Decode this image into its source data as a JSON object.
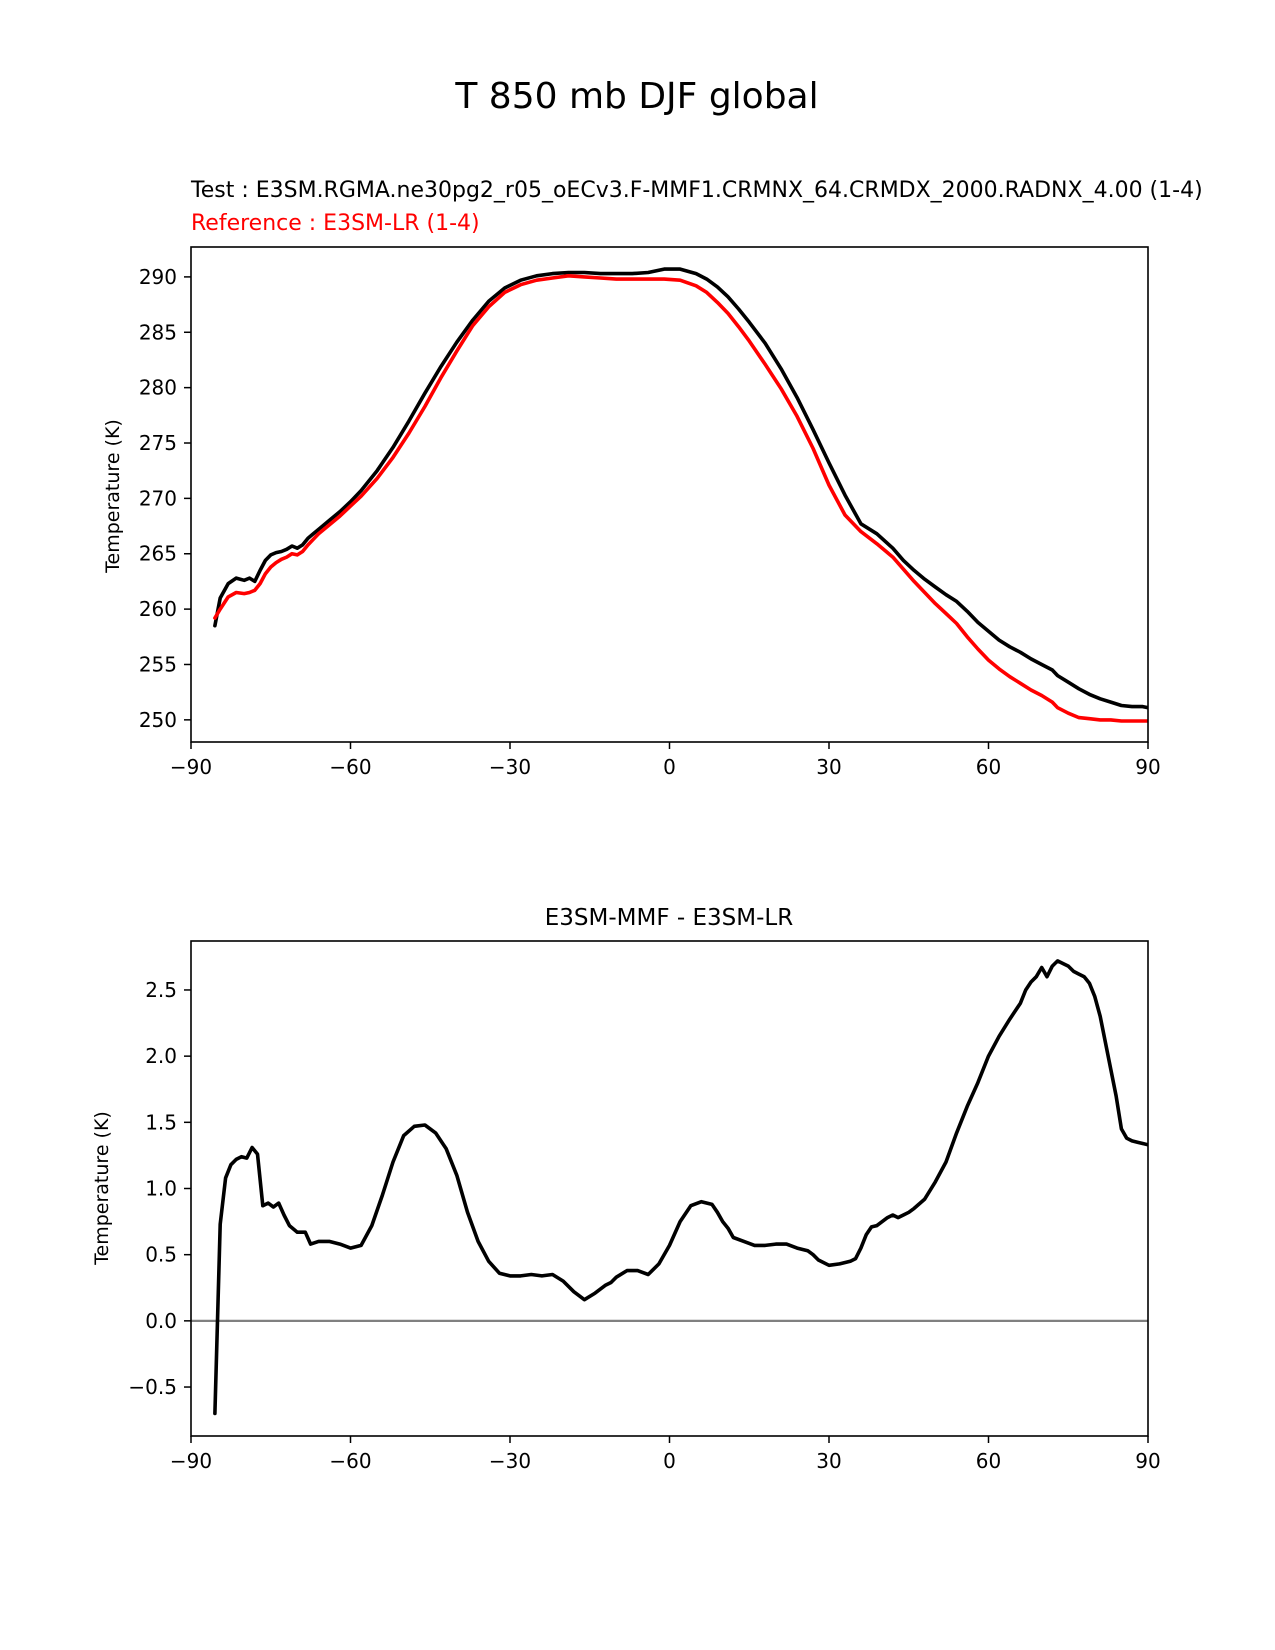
{
  "figure": {
    "title": "T 850 mb DJF global"
  },
  "colors": {
    "test": "#000000",
    "reference": "#ff0000",
    "zero_line": "#808080"
  },
  "chart_data": [
    {
      "type": "line",
      "test_label": "Test : E3SM.RGMA.ne30pg2_r05_oECv3.F-MMF1.CRMNX_64.CRMDX_2000.RADNX_4.00 (1-4)",
      "reference_label": "Reference : E3SM-LR (1-4)",
      "ylabel": "Temperature (K)",
      "xlim": [
        -90,
        90
      ],
      "ylim": [
        248,
        292.7
      ],
      "xticks": [
        -90,
        -60,
        -30,
        0,
        30,
        60,
        90
      ],
      "xtick_labels": [
        "−90",
        "−60",
        "−30",
        "0",
        "30",
        "60",
        "90"
      ],
      "yticks": [
        250,
        255,
        260,
        265,
        270,
        275,
        280,
        285,
        290
      ],
      "ytick_labels": [
        "250",
        "255",
        "260",
        "265",
        "270",
        "275",
        "280",
        "285",
        "290"
      ],
      "series": [
        {
          "role": "test",
          "x": [
            -85.5,
            -84.5,
            -83,
            -81.5,
            -80,
            -79,
            -78,
            -77,
            -76,
            -75,
            -74,
            -73,
            -72,
            -71,
            -70,
            -69,
            -68,
            -67,
            -66,
            -64,
            -62,
            -60,
            -58,
            -55,
            -52,
            -49,
            -46,
            -43,
            -40,
            -37,
            -34,
            -31,
            -28,
            -25,
            -22,
            -19,
            -16,
            -13,
            -10,
            -7,
            -4,
            -1,
            2,
            5,
            7,
            9,
            11,
            13,
            15,
            18,
            21,
            24,
            27,
            30,
            33,
            36,
            39,
            42,
            44,
            46,
            48,
            50,
            52,
            54,
            56,
            58,
            60,
            62,
            64,
            66,
            68,
            70,
            72,
            73,
            75,
            77,
            79,
            81,
            83,
            85,
            87,
            89,
            90
          ],
          "y": [
            258.5,
            261,
            262.3,
            262.8,
            262.6,
            262.8,
            262.5,
            263.5,
            264.4,
            264.9,
            265.1,
            265.2,
            265.4,
            265.7,
            265.5,
            265.8,
            266.4,
            266.8,
            267.2,
            268,
            268.8,
            269.7,
            270.7,
            272.5,
            274.6,
            277,
            279.5,
            281.9,
            284.1,
            286.1,
            287.8,
            289,
            289.7,
            290.1,
            290.3,
            290.4,
            290.4,
            290.3,
            290.3,
            290.3,
            290.4,
            290.7,
            290.7,
            290.3,
            289.8,
            289.1,
            288.2,
            287.1,
            285.9,
            284,
            281.7,
            279.1,
            276.2,
            273.2,
            270.3,
            267.7,
            266.8,
            265.5,
            264.4,
            263.5,
            262.7,
            262,
            261.3,
            260.7,
            259.8,
            258.8,
            258,
            257.2,
            256.6,
            256.1,
            255.5,
            255,
            254.5,
            254,
            253.4,
            252.8,
            252.3,
            251.9,
            251.6,
            251.3,
            251.2,
            251.2,
            251.1
          ]
        },
        {
          "role": "reference",
          "x": [
            -85.5,
            -84.5,
            -83,
            -81.5,
            -80,
            -79,
            -78,
            -77,
            -76,
            -75,
            -74,
            -73,
            -72,
            -71,
            -70,
            -69,
            -68,
            -67,
            -66,
            -64,
            -62,
            -60,
            -58,
            -55,
            -52,
            -49,
            -46,
            -43,
            -40,
            -37,
            -34,
            -31,
            -28,
            -25,
            -22,
            -19,
            -16,
            -13,
            -10,
            -7,
            -4,
            -1,
            2,
            5,
            7,
            9,
            11,
            13,
            15,
            18,
            21,
            24,
            27,
            30,
            33,
            36,
            39,
            42,
            44,
            46,
            48,
            50,
            52,
            54,
            56,
            58,
            60,
            62,
            64,
            66,
            68,
            70,
            72,
            73,
            75,
            77,
            79,
            81,
            83,
            85,
            87,
            89,
            90
          ],
          "y": [
            259.2,
            260,
            261.1,
            261.5,
            261.4,
            261.5,
            261.7,
            262.3,
            263.2,
            263.8,
            264.2,
            264.5,
            264.7,
            265,
            264.9,
            265.2,
            265.8,
            266.3,
            266.8,
            267.6,
            268.4,
            269.3,
            270.2,
            271.8,
            273.7,
            275.9,
            278.3,
            280.9,
            283.3,
            285.6,
            287.3,
            288.6,
            289.3,
            289.7,
            289.9,
            290.1,
            290,
            289.9,
            289.8,
            289.8,
            289.8,
            289.8,
            289.7,
            289.2,
            288.6,
            287.7,
            286.7,
            285.5,
            284.2,
            282.1,
            279.9,
            277.4,
            274.5,
            271.2,
            268.5,
            267,
            265.9,
            264.7,
            263.6,
            262.5,
            261.5,
            260.5,
            259.6,
            258.7,
            257.5,
            256.4,
            255.4,
            254.6,
            253.9,
            253.3,
            252.7,
            252.2,
            251.6,
            251.1,
            250.6,
            250.2,
            250.1,
            250,
            250,
            249.9,
            249.9,
            249.9,
            249.9
          ]
        }
      ]
    },
    {
      "type": "line",
      "title": "E3SM-MMF - E3SM-LR",
      "ylabel": "Temperature (K)",
      "xlim": [
        -90,
        90
      ],
      "ylim": [
        -0.87,
        2.87
      ],
      "xticks": [
        -90,
        -60,
        -30,
        0,
        30,
        60,
        90
      ],
      "xtick_labels": [
        "−90",
        "−60",
        "−30",
        "0",
        "30",
        "60",
        "90"
      ],
      "yticks": [
        -0.5,
        0,
        0.5,
        1,
        1.5,
        2,
        2.5
      ],
      "ytick_labels": [
        "−0.5",
        "0.0",
        "0.5",
        "1.0",
        "1.5",
        "2.0",
        "2.5"
      ],
      "zero_line": 0,
      "series": [
        {
          "role": "difference",
          "x": [
            -85.5,
            -84.5,
            -83.5,
            -82.5,
            -81.5,
            -80.5,
            -79.5,
            -78.5,
            -77.5,
            -76.5,
            -75.5,
            -74.5,
            -73.5,
            -72.5,
            -71.5,
            -70,
            -68.5,
            -67.5,
            -66,
            -64,
            -62,
            -60,
            -58,
            -56,
            -54,
            -52,
            -50,
            -48,
            -46,
            -44,
            -42,
            -40,
            -38,
            -36,
            -34,
            -32,
            -30,
            -28,
            -26,
            -24,
            -22,
            -20,
            -18,
            -16,
            -14,
            -12,
            -11,
            -10,
            -8,
            -6,
            -4,
            -2,
            0,
            2,
            4,
            6,
            8,
            9,
            10,
            11,
            12,
            14,
            16,
            18,
            20,
            22,
            24,
            26,
            27,
            28,
            30,
            32,
            34,
            35,
            36,
            37,
            38,
            39,
            40,
            41,
            42,
            43,
            44,
            45,
            46,
            48,
            50,
            52,
            54,
            56,
            58,
            60,
            62,
            64,
            66,
            67,
            68,
            69,
            70,
            71,
            72,
            73,
            74,
            75,
            76,
            77,
            78,
            79,
            80,
            81,
            82,
            83,
            84,
            85,
            86,
            87,
            88,
            89,
            90
          ],
          "y": [
            -0.7,
            0.73,
            1.08,
            1.18,
            1.22,
            1.24,
            1.23,
            1.31,
            1.26,
            0.87,
            0.89,
            0.86,
            0.89,
            0.8,
            0.72,
            0.67,
            0.67,
            0.58,
            0.6,
            0.6,
            0.58,
            0.55,
            0.57,
            0.72,
            0.95,
            1.2,
            1.4,
            1.47,
            1.48,
            1.42,
            1.3,
            1.1,
            0.82,
            0.6,
            0.45,
            0.36,
            0.34,
            0.34,
            0.35,
            0.34,
            0.35,
            0.3,
            0.22,
            0.16,
            0.21,
            0.27,
            0.29,
            0.33,
            0.38,
            0.38,
            0.35,
            0.43,
            0.57,
            0.75,
            0.87,
            0.9,
            0.88,
            0.82,
            0.75,
            0.7,
            0.63,
            0.6,
            0.57,
            0.57,
            0.58,
            0.58,
            0.55,
            0.53,
            0.5,
            0.46,
            0.42,
            0.43,
            0.45,
            0.47,
            0.55,
            0.65,
            0.71,
            0.72,
            0.75,
            0.78,
            0.8,
            0.78,
            0.8,
            0.82,
            0.85,
            0.92,
            1.05,
            1.2,
            1.42,
            1.62,
            1.8,
            2.0,
            2.15,
            2.28,
            2.4,
            2.5,
            2.56,
            2.6,
            2.67,
            2.6,
            2.68,
            2.72,
            2.7,
            2.68,
            2.64,
            2.62,
            2.6,
            2.55,
            2.45,
            2.3,
            2.1,
            1.9,
            1.7,
            1.45,
            1.38,
            1.36,
            1.35,
            1.34,
            1.33
          ]
        }
      ]
    }
  ]
}
